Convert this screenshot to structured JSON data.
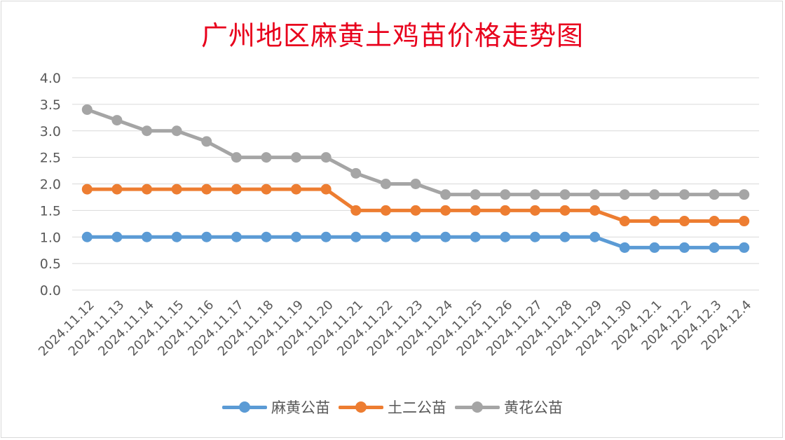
{
  "chart_data": {
    "type": "line",
    "title": "广州地区麻黄土鸡苗价格走势图",
    "categories": [
      "2024.11.12",
      "2024.11.13",
      "2024.11.14",
      "2024.11.15",
      "2024.11.16",
      "2024.11.17",
      "2024.11.18",
      "2024.11.19",
      "2024.11.20",
      "2024.11.21",
      "2024.11.22",
      "2024.11.23",
      "2024.11.24",
      "2024.11.25",
      "2024.11.26",
      "2024.11.27",
      "2024.11.28",
      "2024.11.29",
      "2024.11.30",
      "2024.12.1",
      "2024.12.2",
      "2024.12.3",
      "2024.12.4"
    ],
    "y_ticks": [
      "0.0",
      "0.5",
      "1.0",
      "1.5",
      "2.0",
      "2.5",
      "3.0",
      "3.5",
      "4.0"
    ],
    "ylim": [
      0,
      4
    ],
    "grid": true,
    "legend_position": "bottom",
    "series": [
      {
        "name": "麻黄公苗",
        "color": "#5b9bd5",
        "values": [
          1.0,
          1.0,
          1.0,
          1.0,
          1.0,
          1.0,
          1.0,
          1.0,
          1.0,
          1.0,
          1.0,
          1.0,
          1.0,
          1.0,
          1.0,
          1.0,
          1.0,
          1.0,
          0.8,
          0.8,
          0.8,
          0.8,
          0.8
        ]
      },
      {
        "name": "土二公苗",
        "color": "#ed7d31",
        "values": [
          1.9,
          1.9,
          1.9,
          1.9,
          1.9,
          1.9,
          1.9,
          1.9,
          1.9,
          1.5,
          1.5,
          1.5,
          1.5,
          1.5,
          1.5,
          1.5,
          1.5,
          1.5,
          1.3,
          1.3,
          1.3,
          1.3,
          1.3
        ]
      },
      {
        "name": "黄花公苗",
        "color": "#a5a5a5",
        "values": [
          3.4,
          3.2,
          3.0,
          3.0,
          2.8,
          2.5,
          2.5,
          2.5,
          2.5,
          2.2,
          2.0,
          2.0,
          1.8,
          1.8,
          1.8,
          1.8,
          1.8,
          1.8,
          1.8,
          1.8,
          1.8,
          1.8,
          1.8
        ]
      }
    ]
  }
}
